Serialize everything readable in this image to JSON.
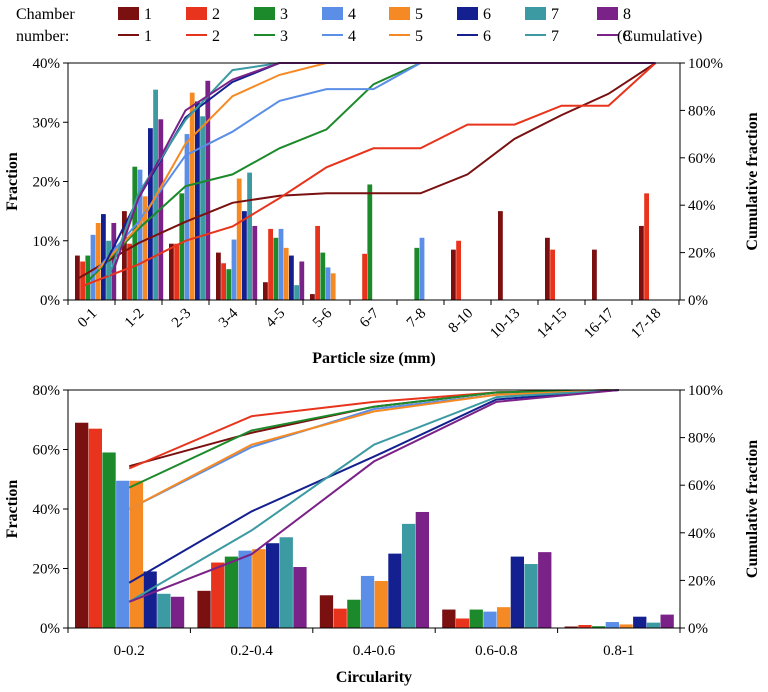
{
  "colors": [
    "#7a1010",
    "#e8341c",
    "#1c8a2a",
    "#5b8ee6",
    "#f58a24",
    "#14208f",
    "#3c9aa3",
    "#7a2288"
  ],
  "legend": {
    "title_line1": "Chamber",
    "title_line2": "number:",
    "labels": [
      "1",
      "2",
      "3",
      "4",
      "5",
      "6",
      "7",
      "8"
    ],
    "cumulative_suffix": "(Cumulative)"
  },
  "chart_data": [
    {
      "type": "bar",
      "title": "",
      "xlabel": "Particle size (mm)",
      "ylabel": "Fraction",
      "y2label": "Cumulative fraction",
      "ylim": [
        0,
        40
      ],
      "y2lim": [
        0,
        100
      ],
      "yticks": [
        "0%",
        "10%",
        "20%",
        "30%",
        "40%"
      ],
      "y2ticks": [
        "0%",
        "20%",
        "40%",
        "60%",
        "80%",
        "100%"
      ],
      "categories": [
        "0-1",
        "1-2",
        "2-3",
        "3-4",
        "4-5",
        "5-6",
        "6-7",
        "7-8",
        "8-10",
        "10-13",
        "14-15",
        "16-17",
        "17-18"
      ],
      "series": [
        {
          "name": "1",
          "values": [
            7.5,
            15,
            9.5,
            8,
            3,
            1,
            0,
            0,
            8.5,
            15,
            10.5,
            8.5,
            12.5
          ]
        },
        {
          "name": "2",
          "values": [
            6.5,
            9.5,
            9.5,
            6.2,
            12,
            12.5,
            7.8,
            0,
            10,
            0,
            8.5,
            0,
            18
          ]
        },
        {
          "name": "3",
          "values": [
            7.5,
            22.5,
            18,
            5.2,
            10.5,
            8,
            19.5,
            8.8,
            0,
            0,
            0,
            0,
            0
          ]
        },
        {
          "name": "4",
          "values": [
            11,
            22,
            28,
            10.2,
            12,
            5.5,
            0,
            10.5,
            0,
            0,
            0,
            0,
            0
          ]
        },
        {
          "name": "5",
          "values": [
            13,
            17.5,
            35,
            20.5,
            8.8,
            4.5,
            0,
            0,
            0,
            0,
            0,
            0,
            0
          ]
        },
        {
          "name": "6",
          "values": [
            14.5,
            29,
            33.5,
            15,
            7.5,
            0,
            0,
            0,
            0,
            0,
            0,
            0,
            0
          ]
        },
        {
          "name": "7",
          "values": [
            10,
            35.5,
            31,
            21.5,
            2.5,
            0,
            0,
            0,
            0,
            0,
            0,
            0,
            0
          ]
        },
        {
          "name": "8",
          "values": [
            13,
            30.5,
            37,
            12.5,
            6.5,
            0,
            0,
            0,
            0,
            0,
            0,
            0,
            0
          ]
        }
      ],
      "cumulative": [
        {
          "name": "1",
          "values": [
            9,
            24,
            33,
            41,
            44,
            45,
            45,
            45,
            53,
            68,
            78,
            87,
            100
          ]
        },
        {
          "name": "2",
          "values": [
            6,
            15,
            25,
            31,
            43,
            56,
            64,
            64,
            74,
            74,
            82,
            82,
            100
          ]
        },
        {
          "name": "3",
          "values": [
            8,
            30,
            48,
            53,
            64,
            72,
            91,
            100,
            100,
            100,
            100,
            100,
            100
          ]
        },
        {
          "name": "4",
          "values": [
            11,
            33,
            61,
            71,
            84,
            89,
            89,
            100,
            100,
            100,
            100,
            100,
            100
          ]
        },
        {
          "name": "5",
          "values": [
            13,
            31,
            66,
            86,
            95,
            100,
            100,
            100,
            100,
            100,
            100,
            100,
            100
          ]
        },
        {
          "name": "6",
          "values": [
            14,
            43,
            77,
            92,
            100,
            100,
            100,
            100,
            100,
            100,
            100,
            100,
            100
          ]
        },
        {
          "name": "7",
          "values": [
            10,
            45,
            76,
            97,
            100,
            100,
            100,
            100,
            100,
            100,
            100,
            100,
            100
          ]
        },
        {
          "name": "8",
          "values": [
            13,
            43,
            80,
            93,
            100,
            100,
            100,
            100,
            100,
            100,
            100,
            100,
            100
          ]
        }
      ]
    },
    {
      "type": "bar",
      "title": "",
      "xlabel": "Circularity",
      "ylabel": "Fraction",
      "y2label": "Cumulative fraction",
      "ylim": [
        0,
        80
      ],
      "y2lim": [
        0,
        100
      ],
      "yticks": [
        "0%",
        "20%",
        "40%",
        "60%",
        "80%"
      ],
      "y2ticks": [
        "0%",
        "20%",
        "40%",
        "60%",
        "80%",
        "100%"
      ],
      "categories": [
        "0-0.2",
        "0.2-0.4",
        "0.4-0.6",
        "0.6-0.8",
        "0.8-1"
      ],
      "series": [
        {
          "name": "1",
          "values": [
            69,
            12.5,
            11,
            6.2,
            0.5
          ]
        },
        {
          "name": "2",
          "values": [
            67,
            22,
            6.5,
            3.2,
            1
          ]
        },
        {
          "name": "3",
          "values": [
            59,
            24,
            9.5,
            6.2,
            0.6
          ]
        },
        {
          "name": "4",
          "values": [
            49.5,
            26,
            17.5,
            5.5,
            2
          ]
        },
        {
          "name": "5",
          "values": [
            49.5,
            26.5,
            15.8,
            7,
            1.2
          ]
        },
        {
          "name": "6",
          "values": [
            19,
            28.5,
            25,
            24,
            3.8
          ]
        },
        {
          "name": "7",
          "values": [
            11.5,
            30.5,
            35,
            21.5,
            1.8
          ]
        },
        {
          "name": "8",
          "values": [
            10.5,
            20.5,
            39,
            25.5,
            4.5
          ]
        }
      ],
      "cumulative": [
        {
          "name": "1",
          "values": [
            68,
            82,
            93,
            99,
            100
          ]
        },
        {
          "name": "2",
          "values": [
            67,
            89,
            95,
            99,
            100
          ]
        },
        {
          "name": "3",
          "values": [
            59,
            83,
            93,
            99,
            100
          ]
        },
        {
          "name": "4",
          "values": [
            50,
            76,
            92,
            98,
            100
          ]
        },
        {
          "name": "5",
          "values": [
            50,
            77,
            91,
            98,
            100
          ]
        },
        {
          "name": "6",
          "values": [
            19,
            49,
            72,
            96,
            100
          ]
        },
        {
          "name": "7",
          "values": [
            11,
            41,
            77,
            97,
            100
          ]
        },
        {
          "name": "8",
          "values": [
            11,
            31,
            70,
            95,
            100
          ]
        }
      ]
    }
  ]
}
